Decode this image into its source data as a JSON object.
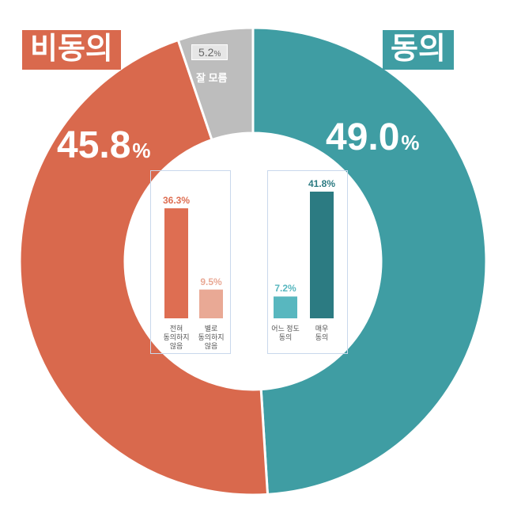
{
  "colors": {
    "disagree": "#D9694D",
    "agree": "#3F9DA3",
    "unknown": "#BDBDBD",
    "strong_disagree": "#DE6E52",
    "mild_disagree": "#E9A995",
    "mild_agree": "#58B7BF",
    "strong_agree": "#2C7B82"
  },
  "tags": {
    "disagree": "비동의",
    "agree": "동의"
  },
  "outer": {
    "disagree": {
      "value_text": "45.8",
      "unit": "%"
    },
    "agree": {
      "value_text": "49.0",
      "unit": "%"
    },
    "unknown": {
      "value_text": "5.2",
      "unit": "%",
      "label": "잘 모름"
    }
  },
  "chart_data": [
    {
      "type": "pie",
      "categories": [
        "동의",
        "비동의",
        "잘 모름"
      ],
      "values": [
        49.0,
        45.8,
        5.2
      ]
    },
    {
      "type": "bar",
      "categories": [
        "전혀 동의하지 않음",
        "별로 동의하지 않음",
        "어느 정도 동의",
        "매우 동의"
      ],
      "values": [
        36.3,
        9.5,
        7.2,
        41.8
      ],
      "value_labels": [
        "36.3%",
        "9.5%",
        "7.2%",
        "41.8%"
      ],
      "category_lines": [
        [
          "전혀",
          "동의하지",
          "않음"
        ],
        [
          "별로",
          "동의하지",
          "않음"
        ],
        [
          "어느 정도",
          "동의"
        ],
        [
          "매우",
          "동의"
        ]
      ]
    }
  ]
}
